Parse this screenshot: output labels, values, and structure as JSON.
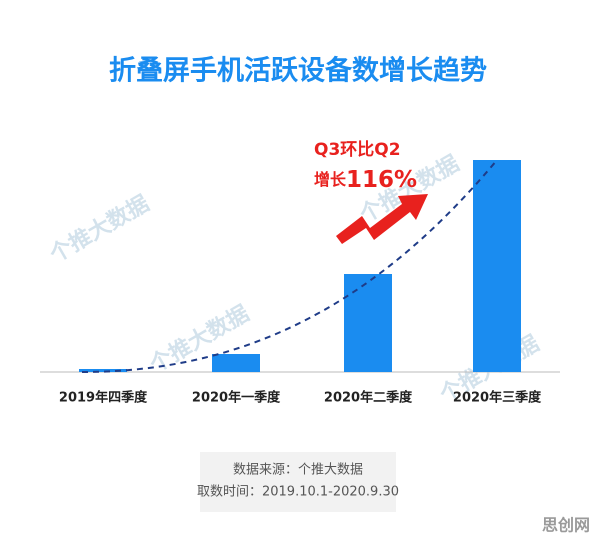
{
  "chart_data": {
    "type": "bar",
    "title": "折叠屏手机活跃设备数增长趋势",
    "categories": [
      "2019年四季度",
      "2020年一季度",
      "2020年二季度",
      "2020年三季度"
    ],
    "values": [
      3,
      18,
      98,
      212
    ],
    "color": "#1a8cf0",
    "ylim": [
      0,
      212
    ],
    "annotation": {
      "line1": "Q3环比Q2",
      "line2_prefix": "增长",
      "line2_value": "116%"
    },
    "source": "数据来源：个推大数据",
    "period": "取数时间：2019.10.1-2020.9.30",
    "watermark": "个推大数据",
    "corner_logo": "思创网"
  }
}
